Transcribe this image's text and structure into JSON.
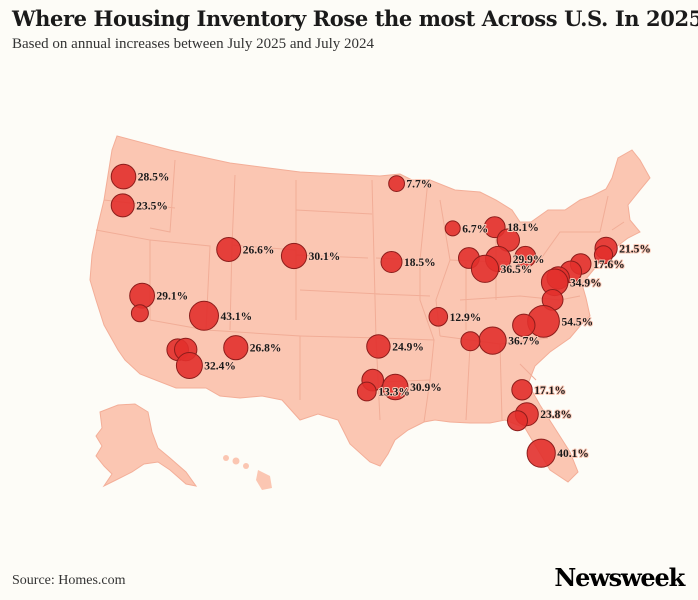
{
  "header": {
    "title": "Where Housing Inventory Rose the most Across U.S. In 2025",
    "subtitle": "Based on annual increases between July 2025 and July 2024"
  },
  "footer": {
    "source": "Source: Homes.com",
    "brand": "Newsweek"
  },
  "colors": {
    "land": "#fbc6b2",
    "state_line": "#f3ae98",
    "bubble": "#e2302c",
    "bubble_outline": "#8c1d1b",
    "background": "#fdfcf7"
  },
  "metros": [
    {
      "name": "Seattle",
      "label": "28.5%",
      "value": 28.5,
      "lon": -122.33,
      "lat": 47.61
    },
    {
      "name": "Portland",
      "label": "23.5%",
      "value": 23.5,
      "lon": -122.68,
      "lat": 45.52
    },
    {
      "name": "Sacramento",
      "label": "29.1%",
      "value": 29.1,
      "lon": -121.49,
      "lat": 38.58
    },
    {
      "name": "San Jose",
      "label": "",
      "value": 10,
      "lon": -121.89,
      "lat": 37.34
    },
    {
      "name": "Salt Lake City",
      "label": "26.6%",
      "value": 26.6,
      "lon": -111.89,
      "lat": 40.76
    },
    {
      "name": "Denver",
      "label": "30.1%",
      "value": 30.1,
      "lon": -104.99,
      "lat": 39.74
    },
    {
      "name": "Las Vegas",
      "label": "43.1%",
      "value": 43.1,
      "lon": -115.14,
      "lat": 36.17
    },
    {
      "name": "Los Angeles",
      "label": "",
      "value": 20,
      "lon": -118.24,
      "lat": 34.05
    },
    {
      "name": "Riverside",
      "label": "",
      "value": 22,
      "lon": -117.4,
      "lat": 33.95
    },
    {
      "name": "San Diego",
      "label": "32.4%",
      "value": 32.4,
      "lon": -117.16,
      "lat": 32.72
    },
    {
      "name": "Phoenix",
      "label": "26.8%",
      "value": 26.8,
      "lon": -112.07,
      "lat": 33.45
    },
    {
      "name": "Minneapolis",
      "label": "7.7%",
      "value": 7.7,
      "lon": -93.27,
      "lat": 44.98
    },
    {
      "name": "Kansas City",
      "label": "18.5%",
      "value": 18.5,
      "lon": -94.58,
      "lat": 39.1
    },
    {
      "name": "Chicago",
      "label": "6.7%",
      "value": 6.7,
      "lon": -87.63,
      "lat": 41.88
    },
    {
      "name": "Detroit",
      "label": "18.1%",
      "value": 18.1,
      "lon": -83.05,
      "lat": 42.33
    },
    {
      "name": "Cleveland",
      "label": "",
      "value": 22,
      "lon": -81.69,
      "lat": 41.5
    },
    {
      "name": "Columbus",
      "label": "29.9%",
      "value": 29.9,
      "lon": -82.99,
      "lat": 39.96
    },
    {
      "name": "Indianapolis",
      "label": "",
      "value": 18,
      "lon": -86.16,
      "lat": 39.77
    },
    {
      "name": "Cincinnati",
      "label": "36.5%",
      "value": 36.5,
      "lon": -84.51,
      "lat": 39.1
    },
    {
      "name": "Pittsburgh",
      "label": "",
      "value": 18,
      "lon": -79.99,
      "lat": 40.44
    },
    {
      "name": "New York",
      "label": "17.6%",
      "value": 17.6,
      "lon": -74.0,
      "lat": 40.71
    },
    {
      "name": "Philadelphia",
      "label": "",
      "value": 20,
      "lon": -75.17,
      "lat": 39.95
    },
    {
      "name": "Baltimore",
      "label": "",
      "value": 22,
      "lon": -76.61,
      "lat": 39.29
    },
    {
      "name": "Washington DC",
      "label": "34.9%",
      "value": 34.9,
      "lon": -77.04,
      "lat": 38.9
    },
    {
      "name": "Richmond",
      "label": "",
      "value": 18,
      "lon": -77.44,
      "lat": 37.54
    },
    {
      "name": "Boston",
      "label": "21.5%",
      "value": 21.5,
      "lon": -71.06,
      "lat": 42.36
    },
    {
      "name": "Providence",
      "label": "",
      "value": 12,
      "lon": -71.41,
      "lat": 41.82
    },
    {
      "name": "Raleigh",
      "label": "54.5%",
      "value": 54.5,
      "lon": -78.64,
      "lat": 35.78
    },
    {
      "name": "Charlotte",
      "label": "",
      "value": 22,
      "lon": -80.84,
      "lat": 35.23
    },
    {
      "name": "Atlanta",
      "label": "36.7%",
      "value": 36.7,
      "lon": -84.39,
      "lat": 33.75
    },
    {
      "name": "Birmingham",
      "label": "",
      "value": 14,
      "lon": -86.8,
      "lat": 33.52
    },
    {
      "name": "Memphis",
      "label": "12.9%",
      "value": 12.9,
      "lon": -90.05,
      "lat": 35.15
    },
    {
      "name": "Dallas",
      "label": "24.9%",
      "value": 24.9,
      "lon": -96.8,
      "lat": 32.78
    },
    {
      "name": "Austin",
      "label": "",
      "value": 20,
      "lon": -97.74,
      "lat": 30.27
    },
    {
      "name": "San Antonio",
      "label": "13.3%",
      "value": 13.3,
      "lon": -98.49,
      "lat": 29.42
    },
    {
      "name": "Houston",
      "label": "30.9%",
      "value": 30.9,
      "lon": -95.37,
      "lat": 29.76
    },
    {
      "name": "Jacksonville",
      "label": "17.1%",
      "value": 17.1,
      "lon": -81.66,
      "lat": 30.33
    },
    {
      "name": "Orlando",
      "label": "23.8%",
      "value": 23.8,
      "lon": -81.38,
      "lat": 28.54
    },
    {
      "name": "Tampa",
      "label": "",
      "value": 16,
      "lon": -82.46,
      "lat": 27.95
    },
    {
      "name": "Miami",
      "label": "40.1%",
      "value": 40.1,
      "lon": -80.19,
      "lat": 25.76
    }
  ]
}
